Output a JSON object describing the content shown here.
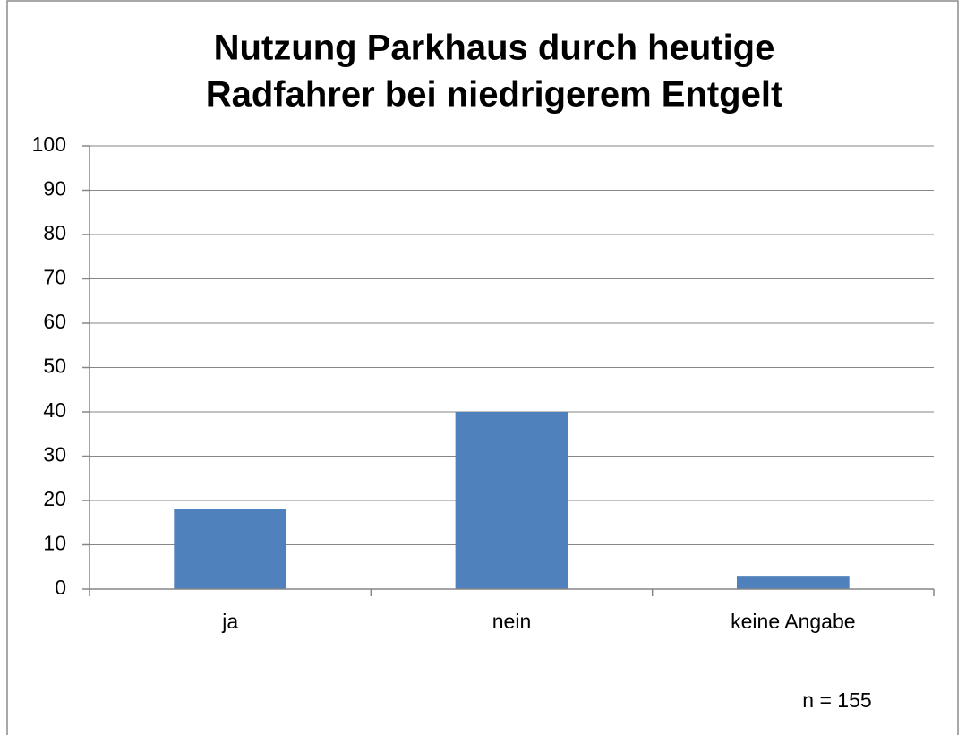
{
  "chart_data": {
    "type": "bar",
    "title": [
      "Nutzung Parkhaus durch heutige",
      "Radfahrer bei niedrigerem Entgelt"
    ],
    "categories": [
      "ja",
      "nein",
      "keine Angabe"
    ],
    "values": [
      18,
      40,
      3
    ],
    "color": "#4f81bd",
    "ylim": [
      0,
      100
    ],
    "yticks": [
      0,
      10,
      20,
      30,
      40,
      50,
      60,
      70,
      80,
      90,
      100
    ],
    "grid": true,
    "annotation": "n = 155"
  }
}
